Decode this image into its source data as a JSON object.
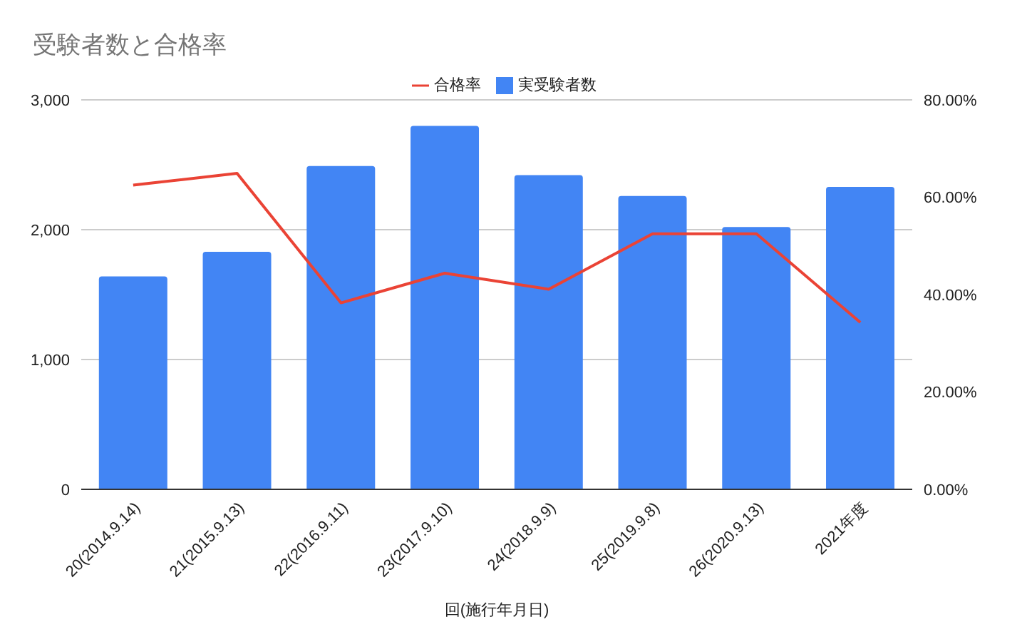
{
  "chart_data": {
    "type": "bar",
    "title": "受験者数と合格率",
    "xlabel": "回(施行年月日)",
    "categories": [
      "20(2014.9.14)",
      "21(2015.9.13)",
      "22(2016.9.11)",
      "23(2017.9.10)",
      "24(2018.9.9)",
      "25(2019.9.8)",
      "26(2020.9.13)",
      "2021年度"
    ],
    "series": [
      {
        "name": "実受験者数",
        "color": "#4285f4",
        "values": [
          1640,
          1830,
          2490,
          2800,
          2420,
          2260,
          2020,
          2330
        ]
      },
      {
        "name": "合格率",
        "type": "line",
        "axis": "y2",
        "color": "#ea4335",
        "values": [
          62.5,
          64.9,
          38.3,
          44.4,
          41.1,
          52.5,
          52.5,
          34.3
        ]
      }
    ],
    "ylim": [
      0,
      3000
    ],
    "yticks": [
      {
        "value": 0,
        "label": "0"
      },
      {
        "value": 1000,
        "label": "1,000"
      },
      {
        "value": 2000,
        "label": "2,000"
      },
      {
        "value": 3000,
        "label": "3,000"
      }
    ],
    "y2lim": [
      0,
      80
    ],
    "y2ticks": [
      {
        "value": 0,
        "label": "0.00%"
      },
      {
        "value": 20,
        "label": "20.00%"
      },
      {
        "value": 40,
        "label": "40.00%"
      },
      {
        "value": 60,
        "label": "60.00%"
      },
      {
        "value": 80,
        "label": "80.00%"
      }
    ],
    "grid": "y",
    "legend": "top",
    "marker": "none"
  }
}
